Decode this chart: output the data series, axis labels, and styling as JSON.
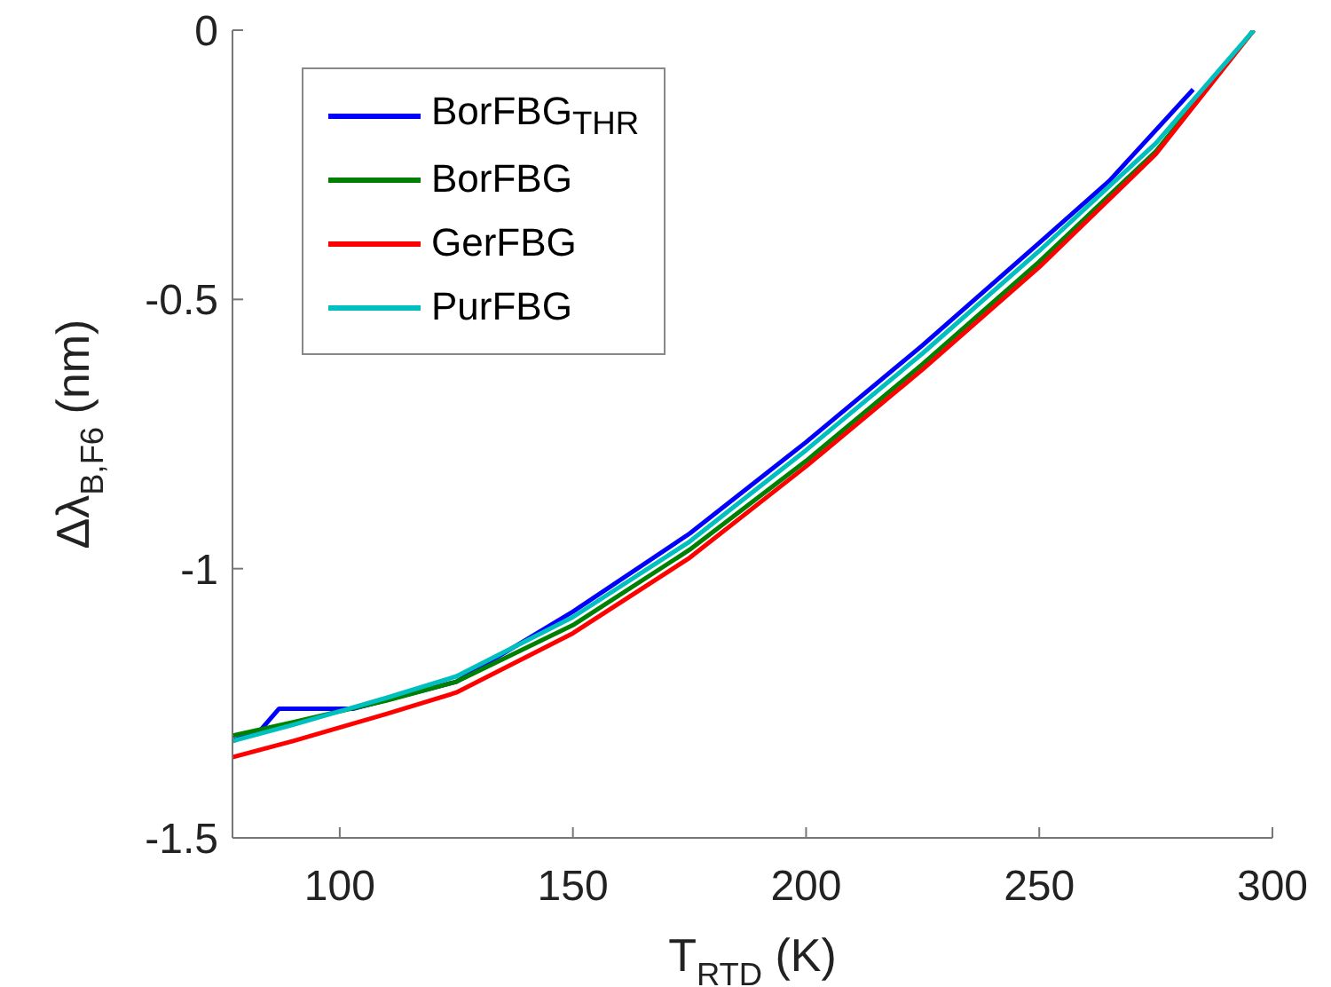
{
  "chart_data": {
    "type": "line",
    "xlabel": "T$_{RTD}$ (K)",
    "ylabel": "Δλ$_{B,F6}$ (nm)",
    "xlim": [
      77,
      300
    ],
    "xticks": [
      100,
      150,
      200,
      250,
      300
    ],
    "ylim": [
      -1.5,
      0
    ],
    "yticks": [
      -1.5,
      -1,
      -0.5,
      0
    ],
    "legend": "top left",
    "marker": "none",
    "line_style": "solid",
    "series": [
      {
        "name": "BorFBG$_{THR}$",
        "color": "#0000ff",
        "x": [
          77,
          83,
          87,
          103,
          125,
          150,
          175,
          200,
          225,
          250,
          265,
          283
        ],
        "values": [
          -1.32,
          -1.3,
          -1.26,
          -1.26,
          -1.21,
          -1.08,
          -0.935,
          -0.765,
          -0.585,
          -0.395,
          -0.28,
          -0.11
        ]
      },
      {
        "name": "BorFBG",
        "color": "#008000",
        "x": [
          77,
          90,
          100,
          110,
          125,
          150,
          175,
          200,
          225,
          250,
          275,
          296
        ],
        "values": [
          -1.31,
          -1.285,
          -1.265,
          -1.245,
          -1.21,
          -1.105,
          -0.965,
          -0.8,
          -0.62,
          -0.43,
          -0.225,
          0
        ]
      },
      {
        "name": "GerFBG",
        "color": "#ff0000",
        "x": [
          77,
          90,
          100,
          110,
          125,
          150,
          175,
          200,
          225,
          250,
          275,
          296
        ],
        "values": [
          -1.35,
          -1.32,
          -1.295,
          -1.27,
          -1.23,
          -1.12,
          -0.98,
          -0.81,
          -0.63,
          -0.44,
          -0.23,
          0
        ]
      },
      {
        "name": "PurFBG",
        "color": "#00bfbf",
        "x": [
          77,
          90,
          100,
          110,
          125,
          150,
          175,
          200,
          225,
          250,
          275,
          296
        ],
        "values": [
          -1.32,
          -1.29,
          -1.265,
          -1.24,
          -1.2,
          -1.09,
          -0.95,
          -0.78,
          -0.6,
          -0.41,
          -0.21,
          0
        ]
      }
    ]
  }
}
